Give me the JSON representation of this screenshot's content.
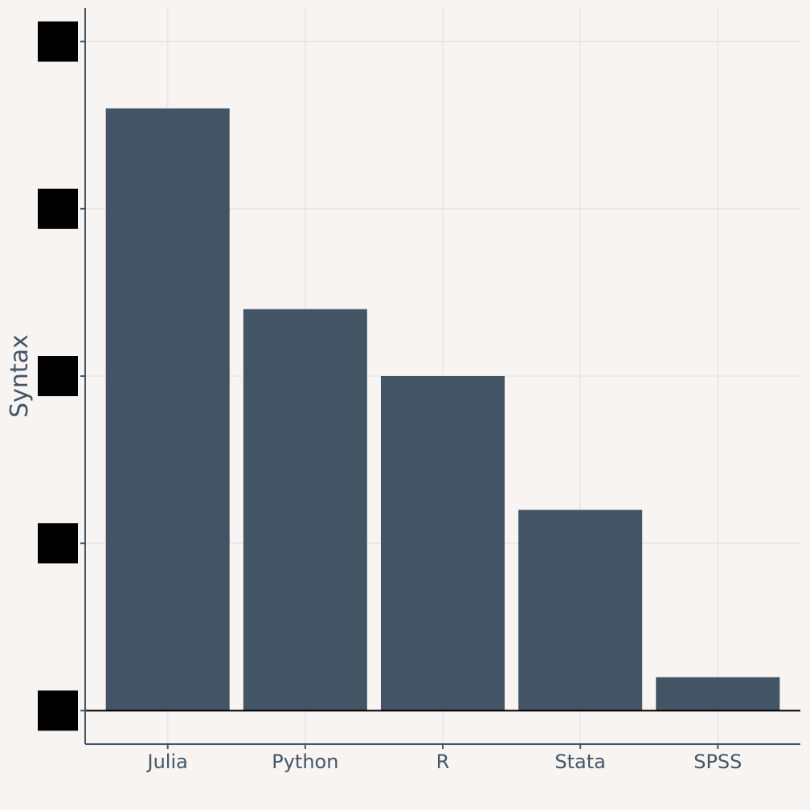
{
  "chart_data": {
    "type": "bar",
    "title": "",
    "xlabel": "",
    "ylabel": "Syntax",
    "categories": [
      "Julia",
      "Python",
      "R",
      "Stata",
      "SPSS"
    ],
    "values": [
      9,
      6,
      5,
      3,
      0.5
    ],
    "ylim": [
      -0.5,
      10.5
    ],
    "yticks": [
      0,
      2.5,
      5,
      7.5,
      10
    ],
    "ytick_labels_redacted": true,
    "grid": true,
    "legend": "none",
    "colors": {
      "bar": "#435564",
      "axis": "#445566",
      "grid": "#e6e6e6",
      "zero_line": "#000000",
      "background": "#f7f4f2",
      "redaction": "#000000"
    }
  }
}
